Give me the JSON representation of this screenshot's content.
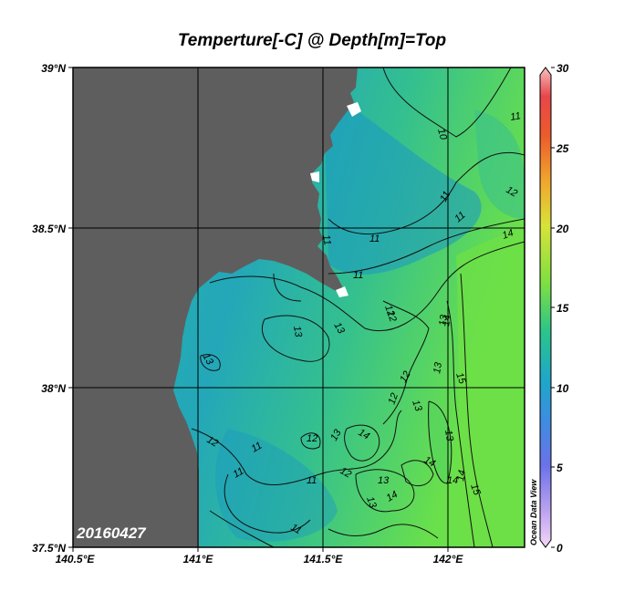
{
  "title": "Temperture[-C] @ Depth[m]=Top",
  "date_stamp": "20160427",
  "credit": "Ocean Data View",
  "axes": {
    "lat_ticks": [
      "39°N",
      "38.5°N",
      "38°N",
      "37.5°N"
    ],
    "lon_ticks": [
      "140.5°E",
      "141°E",
      "141.5°E",
      "142°E"
    ]
  },
  "colorbar": {
    "ticks": [
      "30",
      "25",
      "20",
      "15",
      "10",
      "5",
      "0"
    ],
    "min": 0,
    "max": 30
  },
  "contour_labels": [
    "10",
    "11",
    "11",
    "11",
    "11",
    "11",
    "11",
    "11",
    "11",
    "11",
    "12",
    "12",
    "12",
    "12",
    "12",
    "12",
    "12",
    "13",
    "13",
    "13",
    "13",
    "13",
    "13",
    "13",
    "13",
    "13",
    "13",
    "14",
    "14",
    "14",
    "14",
    "14",
    "14",
    "15",
    "15",
    "11",
    "12",
    "14"
  ],
  "colors": {
    "land": "#5f5e5e",
    "grid": "#000000",
    "sea_cold": "#1f9fbf",
    "sea_mid": "#34c29c",
    "sea_warm": "#66e048"
  }
}
